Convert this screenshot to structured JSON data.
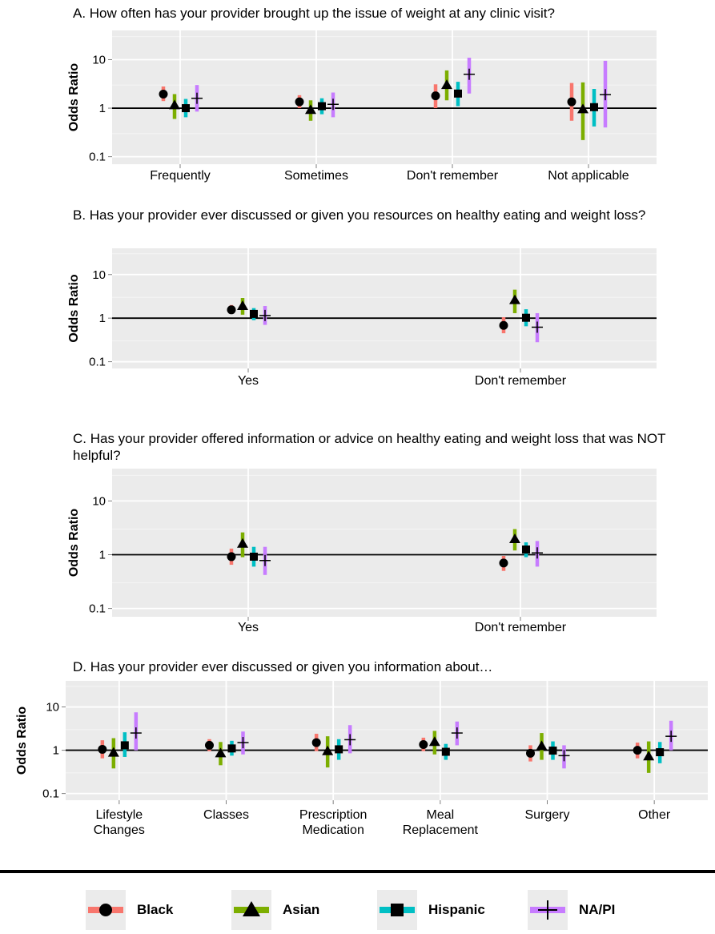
{
  "series": [
    {
      "name": "Black",
      "color": "#f8766d",
      "shape": "circle"
    },
    {
      "name": "Asian",
      "color": "#7cae00",
      "shape": "triangle"
    },
    {
      "name": "Hispanic",
      "color": "#00bfc4",
      "shape": "square"
    },
    {
      "name": "NA/PI",
      "color": "#c77cff",
      "shape": "cross"
    }
  ],
  "chart_data": [
    {
      "type": "scatter",
      "title": "A. How often has your provider brought up the issue of weight at any clinic visit?",
      "ylabel": "Odds Ratio",
      "yscale": "log",
      "ylim": [
        0.07,
        40
      ],
      "yticks": [
        "10",
        "1",
        "0.1"
      ],
      "reference_line": 1,
      "categories": [
        "Frequently",
        "Sometimes",
        "Don't remember",
        "Not applicable"
      ],
      "series": [
        {
          "name": "Black",
          "values": [
            1.95,
            1.35,
            1.8,
            1.35
          ],
          "lower": [
            1.4,
            1.0,
            1.0,
            0.55
          ],
          "upper": [
            2.8,
            1.85,
            3.1,
            3.3
          ]
        },
        {
          "name": "Asian",
          "values": [
            1.15,
            0.92,
            3.0,
            0.95
          ],
          "lower": [
            0.6,
            0.55,
            1.45,
            0.22
          ],
          "upper": [
            1.95,
            1.45,
            6.0,
            3.4
          ]
        },
        {
          "name": "Hispanic",
          "values": [
            1.0,
            1.1,
            2.0,
            1.05
          ],
          "lower": [
            0.65,
            0.75,
            1.1,
            0.42
          ],
          "upper": [
            1.55,
            1.6,
            3.5,
            2.5
          ]
        },
        {
          "name": "NA/PI",
          "values": [
            1.6,
            1.2,
            5.0,
            1.9
          ],
          "lower": [
            0.85,
            0.65,
            2.0,
            0.4
          ],
          "upper": [
            3.0,
            2.1,
            11.0,
            9.5
          ]
        }
      ]
    },
    {
      "type": "scatter",
      "title": "B. Has your provider ever discussed or given you resources on healthy eating and weight loss?",
      "ylabel": "Odds Ratio",
      "yscale": "log",
      "ylim": [
        0.07,
        40
      ],
      "yticks": [
        "10",
        "1",
        "0.1"
      ],
      "reference_line": 1,
      "categories": [
        "Yes",
        "Don't remember"
      ],
      "series": [
        {
          "name": "Black",
          "values": [
            1.55,
            0.68
          ],
          "lower": [
            1.25,
            0.45
          ],
          "upper": [
            2.0,
            1.05
          ]
        },
        {
          "name": "Asian",
          "values": [
            1.9,
            2.6
          ],
          "lower": [
            1.2,
            1.3
          ],
          "upper": [
            2.9,
            4.5
          ]
        },
        {
          "name": "Hispanic",
          "values": [
            1.25,
            1.02
          ],
          "lower": [
            0.9,
            0.65
          ],
          "upper": [
            1.7,
            1.6
          ]
        },
        {
          "name": "NA/PI",
          "values": [
            1.15,
            0.62
          ],
          "lower": [
            0.7,
            0.28
          ],
          "upper": [
            1.9,
            1.3
          ]
        }
      ]
    },
    {
      "type": "scatter",
      "title": "C. Has your provider offered information or advice on healthy eating and weight loss that was NOT helpful?",
      "ylabel": "Odds Ratio",
      "yscale": "log",
      "ylim": [
        0.07,
        40
      ],
      "yticks": [
        "10",
        "1",
        "0.1"
      ],
      "reference_line": 1,
      "categories": [
        "Yes",
        "Don't remember"
      ],
      "series": [
        {
          "name": "Black",
          "values": [
            0.92,
            0.7
          ],
          "lower": [
            0.65,
            0.5
          ],
          "upper": [
            1.3,
            0.95
          ]
        },
        {
          "name": "Asian",
          "values": [
            1.6,
            1.95
          ],
          "lower": [
            0.9,
            1.2
          ],
          "upper": [
            2.6,
            3.0
          ]
        },
        {
          "name": "Hispanic",
          "values": [
            0.92,
            1.25
          ],
          "lower": [
            0.6,
            0.9
          ],
          "upper": [
            1.4,
            1.7
          ]
        },
        {
          "name": "NA/PI",
          "values": [
            0.78,
            1.08
          ],
          "lower": [
            0.42,
            0.6
          ],
          "upper": [
            1.4,
            1.8
          ]
        }
      ]
    },
    {
      "type": "scatter",
      "title": "D. Has your provider ever discussed or given you information about…",
      "ylabel": "Odds Ratio",
      "yscale": "log",
      "ylim": [
        0.07,
        40
      ],
      "yticks": [
        "10",
        "1",
        "0.1"
      ],
      "reference_line": 1,
      "categories": [
        "Lifestyle\nChanges",
        "Classes",
        "Prescription\nMedication",
        "Meal\nReplacement",
        "Surgery",
        "Other"
      ],
      "series": [
        {
          "name": "Black",
          "values": [
            1.05,
            1.3,
            1.5,
            1.35,
            0.85,
            1.0
          ],
          "lower": [
            0.65,
            0.95,
            0.95,
            0.95,
            0.55,
            0.65
          ],
          "upper": [
            1.7,
            1.8,
            2.4,
            1.95,
            1.3,
            1.5
          ]
        },
        {
          "name": "Asian",
          "values": [
            0.88,
            0.85,
            0.95,
            1.55,
            1.25,
            0.72
          ],
          "lower": [
            0.38,
            0.45,
            0.4,
            0.8,
            0.6,
            0.3
          ],
          "upper": [
            1.9,
            1.55,
            2.1,
            2.8,
            2.5,
            1.6
          ]
        },
        {
          "name": "Hispanic",
          "values": [
            1.3,
            1.1,
            1.05,
            0.92,
            0.98,
            0.9
          ],
          "lower": [
            0.7,
            0.75,
            0.6,
            0.6,
            0.6,
            0.5
          ],
          "upper": [
            2.6,
            1.65,
            1.8,
            1.4,
            1.6,
            1.55
          ]
        },
        {
          "name": "NA/PI",
          "values": [
            2.5,
            1.5,
            1.75,
            2.5,
            0.75,
            2.1
          ],
          "lower": [
            1.0,
            0.8,
            0.85,
            1.3,
            0.38,
            1.0
          ],
          "upper": [
            7.5,
            2.7,
            3.8,
            4.6,
            1.3,
            4.8
          ]
        }
      ]
    }
  ]
}
